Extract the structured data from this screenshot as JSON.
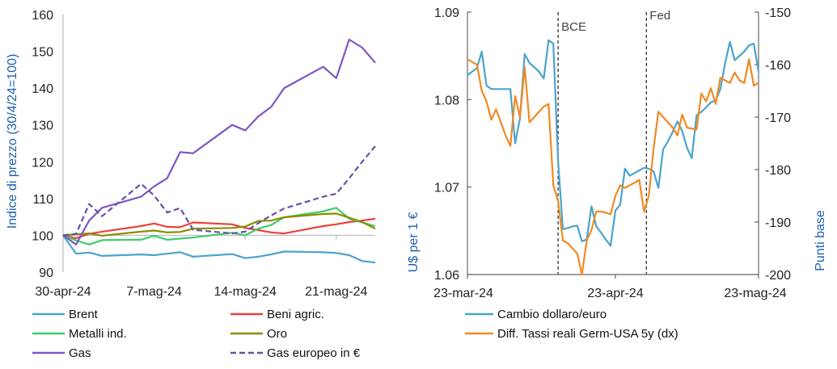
{
  "chart_data": [
    {
      "type": "line",
      "ylabel": "Indice di prezzo (30/4/24=100)",
      "ylim": [
        90,
        160
      ],
      "yticks": [
        90,
        100,
        110,
        120,
        130,
        140,
        150,
        160
      ],
      "x_range": [
        0,
        24
      ],
      "xticks": [
        {
          "x": 0,
          "label": "30-apr-24"
        },
        {
          "x": 7,
          "label": "7-mag-24"
        },
        {
          "x": 14,
          "label": "14-mag-24"
        },
        {
          "x": 21,
          "label": "21-mag-24"
        }
      ],
      "x": [
        0,
        1,
        2,
        3,
        6,
        7,
        8,
        9,
        10,
        13,
        14,
        15,
        16,
        17,
        20,
        21,
        22,
        23,
        24
      ],
      "series": [
        {
          "name": "Brent",
          "color": "#4ba3cc",
          "dash": false,
          "values": [
            100,
            95.0,
            95.3,
            94.4,
            94.8,
            94.6,
            95.0,
            95.4,
            94.2,
            94.9,
            93.8,
            94.2,
            94.8,
            95.6,
            95.4,
            95.2,
            94.6,
            93.0,
            92.6
          ]
        },
        {
          "name": "Beni agric.",
          "color": "#e8433e",
          "dash": false,
          "values": [
            100,
            99.2,
            100.4,
            101.0,
            102.5,
            103.2,
            102.3,
            102.2,
            103.5,
            103.0,
            102.0,
            101.4,
            100.8,
            100.5,
            102.5,
            103.0,
            103.6,
            104.0,
            104.5
          ]
        },
        {
          "name": "Metalli ind.",
          "color": "#3ecc6b",
          "dash": false,
          "values": [
            100,
            98.6,
            97.5,
            98.7,
            98.8,
            99.9,
            98.8,
            99.1,
            99.4,
            100.7,
            100.0,
            101.8,
            102.8,
            104.9,
            106.5,
            107.5,
            104.5,
            103.5,
            102.5
          ]
        },
        {
          "name": "Oro",
          "color": "#8c8c00",
          "dash": false,
          "values": [
            100,
            100.3,
            100.5,
            99.9,
            101.0,
            101.3,
            100.8,
            100.9,
            101.8,
            102.0,
            102.4,
            103.9,
            104.0,
            104.9,
            105.8,
            105.9,
            104.8,
            103.6,
            101.8
          ]
        },
        {
          "name": "Gas",
          "color": "#7e56c2",
          "dash": false,
          "values": [
            100,
            97.5,
            104.0,
            107.5,
            110.5,
            113.3,
            115.5,
            122.6,
            122.3,
            130.0,
            128.5,
            132.3,
            134.9,
            140.0,
            145.8,
            142.7,
            153.2,
            151.0,
            146.9
          ]
        },
        {
          "name": "Gas europeo  in €",
          "color": "#6b4fa8",
          "dash": true,
          "values": [
            100,
            100.4,
            108.5,
            105.2,
            114.0,
            110.8,
            106.2,
            107.4,
            101.5,
            100.5,
            101.0,
            103.3,
            105.4,
            107.3,
            110.5,
            111.3,
            115.5,
            120.0,
            124.2
          ]
        }
      ]
    },
    {
      "type": "line",
      "ylabel": "U$ per 1 €",
      "ylabel_right": "Punti base",
      "ylim": [
        1.06,
        1.09
      ],
      "yticks": [
        1.06,
        1.07,
        1.08,
        1.09
      ],
      "ylim_right": [
        -200,
        -150
      ],
      "yticks_right": [
        -200,
        -190,
        -180,
        -170,
        -160,
        -150
      ],
      "x_range": [
        0,
        61
      ],
      "xticks": [
        {
          "x": 0,
          "label": "23-mar-24"
        },
        {
          "x": 31,
          "label": "23-apr-24"
        },
        {
          "x": 61,
          "label": "23-mag-24"
        }
      ],
      "annotations": [
        {
          "x": 19,
          "label": "BCE"
        },
        {
          "x": 37.5,
          "label": "Fed"
        }
      ],
      "series": [
        {
          "name": "Cambio dollaro/euro",
          "color": "#4ba3cc",
          "axis": "left",
          "x": [
            0,
            1,
            2,
            3,
            4,
            5,
            6,
            7,
            8,
            9,
            10,
            11,
            12,
            13,
            14,
            15,
            16,
            17,
            18,
            19,
            20,
            21,
            22,
            23,
            24,
            25,
            26,
            27,
            28,
            29,
            30,
            31,
            32,
            33,
            34,
            35,
            36,
            37,
            38,
            39,
            40,
            41,
            42,
            43,
            44,
            45,
            46,
            47,
            48,
            49,
            50,
            51,
            52,
            53,
            54,
            55,
            56,
            57,
            58,
            59,
            60,
            61
          ],
          "values": [
            1.0828,
            1.0832,
            1.0836,
            1.0855,
            1.0816,
            1.0812,
            1.0812,
            1.0812,
            1.0812,
            1.0812,
            1.075,
            1.0778,
            1.0852,
            1.0842,
            1.0837,
            1.0832,
            1.0824,
            1.0868,
            1.0864,
            1.073,
            1.0652,
            1.0653,
            1.0655,
            1.0656,
            1.0638,
            1.064,
            1.0678,
            1.0655,
            1.0648,
            1.064,
            1.0633,
            1.0673,
            1.068,
            1.0721,
            1.0713,
            1.0716,
            1.0719,
            1.0722,
            1.0721,
            1.0718,
            1.0699,
            1.0743,
            1.0752,
            1.0763,
            1.0775,
            1.0764,
            1.0745,
            1.0733,
            1.0782,
            1.0786,
            1.0791,
            1.0797,
            1.0799,
            1.0812,
            1.0842,
            1.0866,
            1.0845,
            1.085,
            1.0855,
            1.0862,
            1.0864,
            1.0832
          ]
        },
        {
          "name": "Diff. Tassi reali Germ-USA 5y (dx)",
          "color": "#f08a24",
          "axis": "right",
          "x": [
            0,
            1,
            2,
            3,
            4,
            5,
            6,
            7,
            8,
            9,
            10,
            11,
            12,
            13,
            14,
            15,
            16,
            17,
            18,
            19,
            20,
            21,
            22,
            23,
            24,
            25,
            26,
            27,
            28,
            29,
            30,
            31,
            32,
            33,
            34,
            35,
            36,
            37,
            38,
            39,
            40,
            41,
            42,
            43,
            44,
            45,
            46,
            47,
            48,
            49,
            50,
            51,
            52,
            53,
            54,
            55,
            56,
            57,
            58,
            59,
            60,
            61
          ],
          "values": [
            -159.0,
            -159.5,
            -160.0,
            -165.0,
            -167.0,
            -170.5,
            -168.5,
            -171.0,
            -173.5,
            -175.5,
            -166.0,
            -170.0,
            -160.5,
            -171.0,
            -170.0,
            -169.0,
            -168.0,
            -167.5,
            -183.0,
            -186.0,
            -193.5,
            -194.0,
            -195.0,
            -196.0,
            -200.0,
            -193.5,
            -191.5,
            -188.0,
            -188.0,
            -188.2,
            -188.5,
            -185.0,
            -183.0,
            -183.5,
            -183.0,
            -182.5,
            -182.0,
            -188.0,
            -185.0,
            -176.0,
            -169.0,
            -170.0,
            -171.0,
            -172.0,
            -173.5,
            -169.5,
            -172.0,
            -172.2,
            -172.4,
            -165.5,
            -167.0,
            -164.5,
            -167.5,
            -162.5,
            -163.0,
            -163.5,
            -161.5,
            -163.0,
            -163.5,
            -159.0,
            -164.0,
            -163.5
          ]
        }
      ]
    }
  ]
}
